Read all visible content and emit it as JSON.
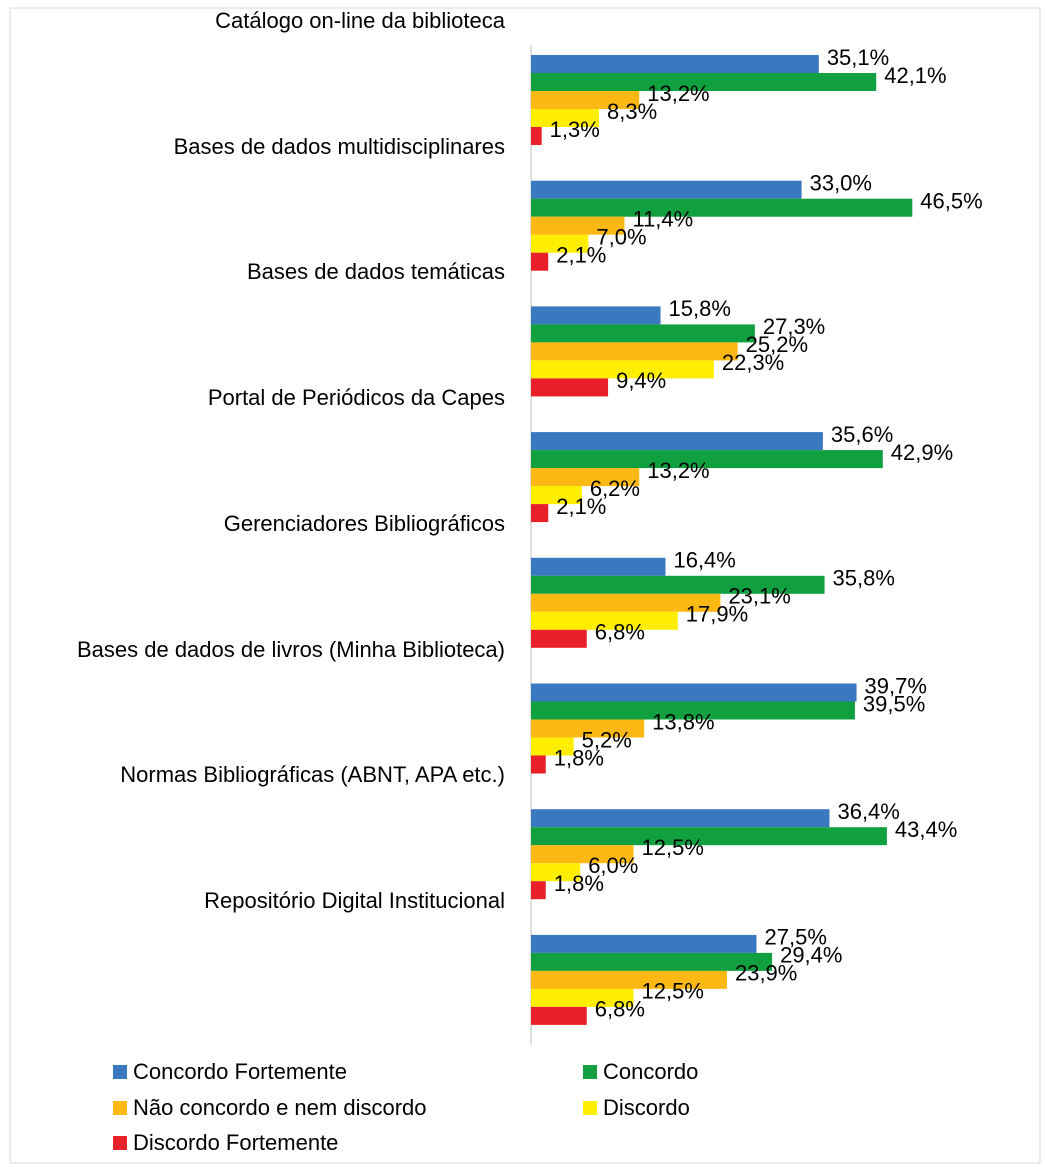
{
  "chart_data": {
    "type": "hbar",
    "categories": [
      "Catálogo on-line da biblioteca",
      "Bases de dados multidisciplinares",
      "Bases de dados temáticas",
      "Portal de Periódicos da Capes",
      "Gerenciadores Bibliográficos",
      "Bases de dados de livros (Minha Biblioteca)",
      "Normas Bibliográficas (ABNT, APA etc.)",
      "Repositório Digital Institucional"
    ],
    "series": [
      {
        "name": "Concordo Fortemente",
        "color": "#3a78c0",
        "values": [
          35.1,
          33.0,
          15.8,
          35.6,
          16.4,
          39.7,
          36.4,
          27.5
        ],
        "value_labels": [
          "35,1%",
          "33,0%",
          "15,8%",
          "35,6%",
          "16,4%",
          "39,7%",
          "36,4%",
          "27,5%"
        ]
      },
      {
        "name": "Concordo",
        "color": "#10a040",
        "values": [
          42.1,
          46.5,
          27.3,
          42.9,
          35.8,
          39.5,
          43.4,
          29.4
        ],
        "value_labels": [
          "42,1%",
          "46,5%",
          "27,3%",
          "42,9%",
          "35,8%",
          "39,5%",
          "43,4%",
          "29,4%"
        ]
      },
      {
        "name": "Não concordo e nem discordo",
        "color": "#fdb813",
        "values": [
          13.2,
          11.4,
          25.2,
          13.2,
          23.1,
          13.8,
          12.5,
          23.9
        ],
        "value_labels": [
          "13,2%",
          "11,4%",
          "25,2%",
          "13,2%",
          "23,1%",
          "13,8%",
          "12,5%",
          "23,9%"
        ]
      },
      {
        "name": "Discordo",
        "color": "#ffee00",
        "values": [
          8.3,
          7.0,
          22.3,
          6.2,
          17.9,
          5.2,
          6.0,
          12.5
        ],
        "value_labels": [
          "8,3%",
          "7,0%",
          "22,3%",
          "6,2%",
          "17,9%",
          "5,2%",
          "6,0%",
          "12,5%"
        ]
      },
      {
        "name": "Discordo Fortemente",
        "color": "#e8202a",
        "values": [
          1.3,
          2.1,
          9.4,
          2.1,
          6.8,
          1.8,
          1.8,
          6.8
        ],
        "value_labels": [
          "1,3%",
          "2,1%",
          "9,4%",
          "2,1%",
          "6,8%",
          "1,8%",
          "1,8%",
          "6,8%"
        ]
      }
    ],
    "xlim": [
      0,
      60
    ]
  }
}
